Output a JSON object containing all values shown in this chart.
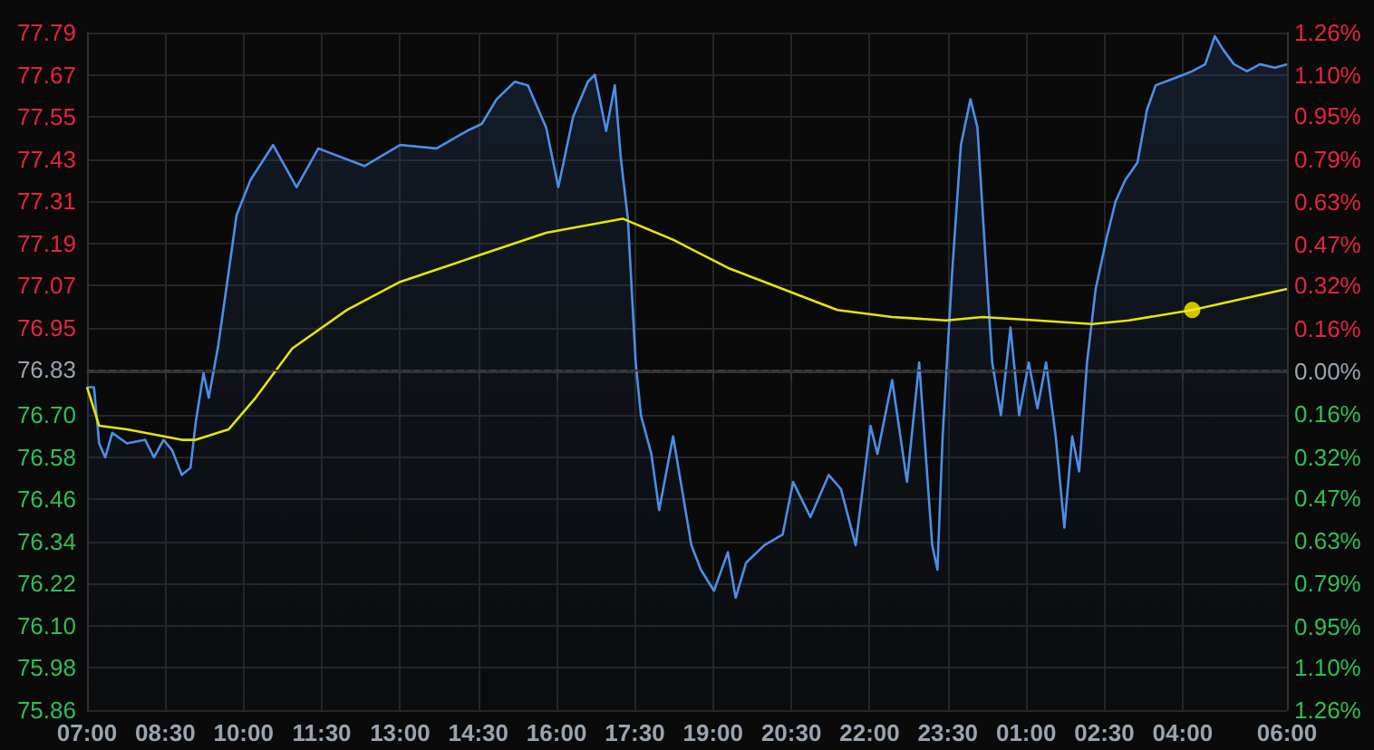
{
  "chart_data": {
    "type": "area",
    "grid": true,
    "xlim": [
      "--01-01T07:00",
      "--01-02T06:00"
    ],
    "xticks": [
      {
        "value": "--01-01T07:00",
        "label": "07:00"
      },
      {
        "value": "--01-01T08:30",
        "label": "08:30"
      },
      {
        "value": "--01-01T10:00",
        "label": "10:00"
      },
      {
        "value": "--01-01T11:30",
        "label": "11:30"
      },
      {
        "value": "--01-01T13:00",
        "label": "13:00"
      },
      {
        "value": "--01-01T14:30",
        "label": "14:30"
      },
      {
        "value": "--01-01T16:00",
        "label": "16:00"
      },
      {
        "value": "--01-01T17:30",
        "label": "17:30"
      },
      {
        "value": "--01-01T19:00",
        "label": "19:00"
      },
      {
        "value": "--01-01T20:30",
        "label": "20:30"
      },
      {
        "value": "--01-01T22:00",
        "label": "22:00"
      },
      {
        "value": "--01-01T23:30",
        "label": "23:30"
      },
      {
        "value": "--01-02T01:00",
        "label": "01:00"
      },
      {
        "value": "--01-02T02:30",
        "label": "02:30"
      },
      {
        "value": "--01-02T04:00",
        "label": "04:00"
      },
      {
        "value": "--01-02T06:00",
        "label": "06:00"
      }
    ],
    "ylim": [
      75.86,
      77.79
    ],
    "yticks": [
      75.86,
      75.98,
      {
        "value": 76.1,
        "label": "76.10"
      },
      76.22,
      76.34,
      76.46,
      76.58,
      {
        "value": 76.7,
        "label": "76.70"
      },
      76.83,
      76.95,
      77.07,
      77.19,
      77.31,
      77.43,
      77.55,
      77.67,
      77.79
    ],
    "y2lim": [
      -1.26,
      1.26
    ],
    "y2ticks": [
      {
        "value": -1.26,
        "label": "1.26%"
      },
      {
        "value": -1.1,
        "label": "1.10%"
      },
      {
        "value": -0.95,
        "label": "0.95%"
      },
      {
        "value": -0.79,
        "label": "0.79%"
      },
      {
        "value": -0.63,
        "label": "0.63%"
      },
      {
        "value": -0.47,
        "label": "0.47%"
      },
      {
        "value": -0.32,
        "label": "0.32%"
      },
      {
        "value": -0.16,
        "label": "0.16%"
      },
      {
        "value": 0,
        "label": "0.00%"
      },
      {
        "value": 0.16,
        "label": "0.16%"
      },
      {
        "value": 0.32,
        "label": "0.32%"
      },
      {
        "value": 0.47,
        "label": "0.47%"
      },
      {
        "value": 0.63,
        "label": "0.63%"
      },
      {
        "value": 0.79,
        "label": "0.79%"
      },
      {
        "value": 0.95,
        "label": "0.95%"
      },
      {
        "value": 1.1,
        "label": "1.10%"
      },
      {
        "value": 1.26,
        "label": "1.26%"
      }
    ],
    "ref_lines": [
      {
        "axis": "y",
        "value": 76.83,
        "line_style": "dashed",
        "color": "#3a3a3a"
      }
    ],
    "series": [
      {
        "color": "#4a8fe8",
        "x": [
          "--01-01T07:00",
          "--01-01T07:08",
          "--01-01T07:14",
          "--01-01T07:21",
          "--01-01T07:29",
          "--01-01T07:46",
          "--01-01T08:07",
          "--01-01T08:17",
          "--01-01T08:28",
          "--01-01T08:38",
          "--01-01T08:49",
          "--01-01T08:59",
          "--01-01T09:05",
          "--01-01T09:14",
          "--01-01T09:20",
          "--01-01T09:31",
          "--01-01T09:43",
          "--01-01T09:52",
          "--01-01T10:08",
          "--01-01T10:34",
          "--01-01T11:01",
          "--01-01T11:26",
          "--01-01T12:19",
          "--01-01T13:00",
          "--01-01T13:42",
          "--01-01T14:17",
          "--01-01T14:34",
          "--01-01T14:51",
          "--01-01T15:12",
          "--01-01T15:27",
          "--01-01T15:48",
          "--01-01T16:02",
          "--01-01T16:08",
          "--01-01T16:19",
          "--01-01T16:36",
          "--01-01T16:44",
          "--01-01T16:57",
          "--01-01T17:07",
          "--01-01T17:14",
          "--01-01T17:22",
          "--01-01T17:31",
          "--01-01T17:37",
          "--01-01T17:49",
          "--01-01T17:58",
          "--01-01T18:14",
          "--01-01T18:35",
          "--01-01T18:46",
          "--01-01T19:01",
          "--01-01T19:17",
          "--01-01T19:26",
          "--01-01T19:38",
          "--01-01T19:59",
          "--01-01T20:20",
          "--01-01T20:32",
          "--01-01T20:52",
          "--01-01T21:13",
          "--01-01T21:27",
          "--01-01T21:44",
          "--01-01T22:01",
          "--01-01T22:09",
          "--01-01T22:26",
          "--01-01T22:43",
          "--01-01T22:57",
          "--01-01T23:12",
          "--01-01T23:18",
          "--01-01T23:24",
          "--01-01T23:35",
          "--01-01T23:45",
          "--01-01T23:56",
          "--01-02T00:04",
          "--01-02T00:13",
          "--01-02T00:21",
          "--01-02T00:31",
          "--01-02T00:42",
          "--01-02T00:52",
          "--01-02T01:03",
          "--01-02T01:13",
          "--01-02T01:23",
          "--01-02T01:34",
          "--01-02T01:44",
          "--01-02T01:53",
          "--01-02T02:01",
          "--01-02T02:10",
          "--01-02T02:20",
          "--01-02T02:33",
          "--01-02T02:43",
          "--01-02T02:54",
          "--01-02T03:08",
          "--01-02T03:19",
          "--01-02T03:29",
          "--01-02T03:40",
          "--01-02T04:01",
          "--01-02T04:11",
          "--01-02T04:26",
          "--01-02T04:37",
          "--01-02T04:47",
          "--01-02T04:59",
          "--01-02T05:14",
          "--01-02T05:29",
          "--01-02T05:46",
          "--01-02T06:00"
        ],
        "values": [
          76.78,
          76.78,
          76.62,
          76.58,
          76.65,
          76.62,
          76.63,
          76.58,
          76.63,
          76.6,
          76.53,
          76.55,
          76.68,
          76.82,
          76.75,
          76.9,
          77.11,
          77.27,
          77.37,
          77.47,
          77.35,
          77.46,
          77.41,
          77.47,
          77.46,
          77.51,
          77.53,
          77.6,
          77.65,
          77.64,
          77.52,
          77.35,
          77.42,
          77.55,
          77.65,
          77.67,
          77.51,
          77.64,
          77.43,
          77.26,
          76.85,
          76.7,
          76.59,
          76.43,
          76.64,
          76.33,
          76.26,
          76.2,
          76.31,
          76.18,
          76.28,
          76.33,
          76.36,
          76.51,
          76.41,
          76.53,
          76.49,
          76.33,
          76.67,
          76.59,
          76.8,
          76.51,
          76.85,
          76.33,
          76.26,
          76.64,
          77.11,
          77.47,
          77.6,
          77.52,
          77.16,
          76.85,
          76.7,
          76.95,
          76.7,
          76.85,
          76.72,
          76.85,
          76.64,
          76.38,
          76.64,
          76.54,
          76.85,
          77.06,
          77.21,
          77.31,
          77.37,
          77.42,
          77.57,
          77.64,
          77.65,
          77.67,
          77.68,
          77.7,
          77.78,
          77.74,
          77.7,
          77.68,
          77.7,
          77.69,
          77.7
        ]
      },
      {
        "type": "line",
        "color": "#e6e600",
        "x": [
          "--01-01T07:00",
          "--01-01T07:14",
          "--01-01T07:46",
          "--01-01T08:49",
          "--01-01T09:05",
          "--01-01T09:43",
          "--01-01T10:14",
          "--01-01T10:56",
          "--01-01T11:59",
          "--01-01T13:00",
          "--01-01T14:24",
          "--01-01T15:48",
          "--01-01T17:16",
          "--01-01T18:14",
          "--01-01T19:17",
          "--01-01T20:20",
          "--01-01T21:23",
          "--01-01T22:26",
          "--01-01T23:28",
          "--01-02T00:10",
          "--01-02T01:13",
          "--01-02T02:16",
          "--01-02T02:58",
          "--01-02T04:11",
          "--01-02T06:00"
        ],
        "values": [
          76.78,
          76.67,
          76.66,
          76.63,
          76.63,
          76.66,
          76.75,
          76.89,
          77,
          77.08,
          77.15,
          77.22,
          77.26,
          77.2,
          77.12,
          77.06,
          77,
          76.98,
          76.97,
          76.98,
          76.97,
          76.96,
          76.97,
          77,
          77.06
        ]
      },
      {
        "type": "scatter",
        "color": "#ffee00",
        "marker": "circle",
        "x": [
          "--01-02T04:11"
        ],
        "values": [
          77
        ]
      }
    ]
  }
}
